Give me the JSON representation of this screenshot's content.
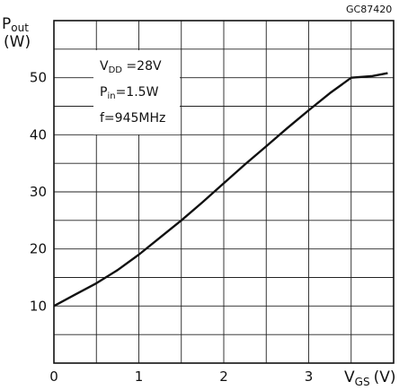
{
  "figure_code": "GC87420",
  "chart_data": {
    "type": "line",
    "title": "",
    "y_axis": {
      "label_main": "P",
      "label_sub": "out",
      "unit": "(W)",
      "range": [
        0,
        60
      ],
      "grid_step": 5,
      "tick_labels": [
        {
          "value": 10,
          "text": "10"
        },
        {
          "value": 20,
          "text": "20"
        },
        {
          "value": 30,
          "text": "30"
        },
        {
          "value": 40,
          "text": "40"
        },
        {
          "value": 50,
          "text": "50"
        }
      ]
    },
    "x_axis": {
      "label_main": "V",
      "label_sub": "GS",
      "unit": "(V)",
      "range": [
        0,
        4
      ],
      "grid_step": 0.5,
      "tick_labels": [
        {
          "value": 0,
          "text": "0"
        },
        {
          "value": 1,
          "text": "1"
        },
        {
          "value": 2,
          "text": "2"
        },
        {
          "value": 3,
          "text": "3"
        }
      ]
    },
    "grid": true,
    "annotations": [
      {
        "main": "V",
        "sub": "DD",
        "rest": " =28V"
      },
      {
        "main": "P",
        "sub": "in",
        "rest": "=1.5W"
      },
      {
        "main": "f=945MHz",
        "sub": "",
        "rest": ""
      }
    ],
    "series": [
      {
        "x": [
          0,
          0.25,
          0.5,
          0.75,
          1.0,
          1.25,
          1.5,
          1.75,
          2.0,
          2.25,
          2.5,
          2.75,
          3.0,
          3.25,
          3.5,
          3.75,
          3.93
        ],
        "y": [
          10,
          12,
          14,
          16.3,
          19,
          22,
          25,
          28.2,
          31.5,
          34.8,
          38,
          41.2,
          44.3,
          47.3,
          50,
          50.3,
          50.8
        ]
      }
    ],
    "line_color": "#111111",
    "grid_color": "#222222"
  }
}
